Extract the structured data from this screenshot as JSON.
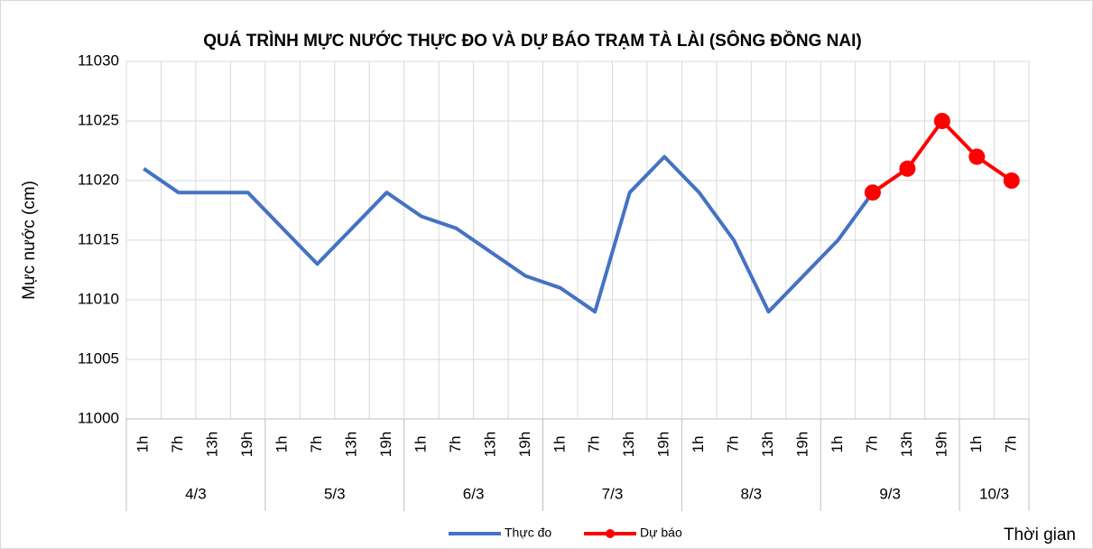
{
  "chart_data": {
    "type": "line",
    "title": "QUÁ TRÌNH MỰC NƯỚC THỰC ĐO VÀ DỰ BÁO TRẠM TÀ LÀI (SÔNG ĐỒNG NAI)",
    "y_label": "Mực nước (cm)",
    "x_label": "Thời gian",
    "category_groups": [
      {
        "name": "4/3",
        "categories": [
          "1h",
          "7h",
          "13h",
          "19h"
        ]
      },
      {
        "name": "5/3",
        "categories": [
          "1h",
          "7h",
          "13h",
          "19h"
        ]
      },
      {
        "name": "6/3",
        "categories": [
          "1h",
          "7h",
          "13h",
          "19h"
        ]
      },
      {
        "name": "7/3",
        "categories": [
          "1h",
          "7h",
          "13h",
          "19h"
        ]
      },
      {
        "name": "8/3",
        "categories": [
          "1h",
          "7h",
          "13h",
          "19h"
        ]
      },
      {
        "name": "9/3",
        "categories": [
          "1h",
          "7h",
          "13h",
          "19h"
        ]
      },
      {
        "name": "10/3",
        "categories": [
          "1h",
          "7h"
        ]
      }
    ],
    "series": [
      {
        "name": "Thực đo",
        "color": "#4472c4",
        "markers": false,
        "values": [
          11021,
          11019,
          11019,
          11019,
          11016,
          11013,
          11016,
          11019,
          11017,
          11016,
          11014,
          11012,
          11011,
          11009,
          11019,
          11022,
          11019,
          11015,
          11009,
          11012,
          11015,
          11019,
          null,
          null,
          null,
          null
        ]
      },
      {
        "name": "Dự báo",
        "color": "#ff0000",
        "markers": true,
        "values": [
          null,
          null,
          null,
          null,
          null,
          null,
          null,
          null,
          null,
          null,
          null,
          null,
          null,
          null,
          null,
          null,
          null,
          null,
          null,
          null,
          null,
          11019,
          11021,
          11025,
          11022,
          11020
        ]
      }
    ],
    "ylim": [
      11000,
      11030
    ],
    "yticks": [
      11000,
      11005,
      11010,
      11015,
      11020,
      11025,
      11030
    ],
    "grid": true,
    "legend": "bottom"
  }
}
